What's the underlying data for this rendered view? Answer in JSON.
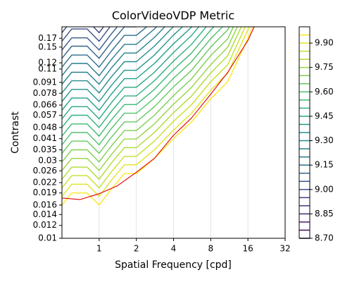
{
  "chart_data": {
    "type": "contour",
    "title": "ColorVideoVDP Metric",
    "x_label": "Spatial Frequency [cpd]",
    "y_label": "Contrast",
    "x_scale": "log",
    "y_scale": "log",
    "grid": "x",
    "xlim": [
      0.5,
      32
    ],
    "ylim": [
      0.01,
      0.2
    ],
    "xticks": [
      1,
      2,
      4,
      8,
      16,
      32
    ],
    "yticks": [
      0.01,
      0.012,
      0.014,
      0.016,
      0.019,
      0.022,
      0.026,
      0.03,
      0.035,
      0.041,
      0.048,
      0.057,
      0.066,
      0.078,
      0.091,
      0.11,
      0.12,
      0.15,
      0.17
    ],
    "x": [
      0.5,
      0.6,
      0.8,
      1,
      1.25,
      1.6,
      2,
      2.8,
      4,
      5.6,
      8,
      11,
      16,
      20
    ],
    "contours": [
      {
        "level": 9.95,
        "values": [
          0.016,
          0.019,
          0.019,
          0.016,
          0.02,
          0.025,
          0.025,
          0.031,
          0.041,
          0.052,
          0.072,
          0.092,
          0.17,
          0.26
        ]
      },
      {
        "level": 9.9,
        "values": [
          0.0181,
          0.0215,
          0.0215,
          0.0181,
          0.0226,
          0.0283,
          0.0283,
          0.035,
          0.0463,
          0.0588,
          0.0814,
          0.104,
          0.192,
          0.294
        ]
      },
      {
        "level": 9.85,
        "values": [
          0.0204,
          0.0243,
          0.0243,
          0.0204,
          0.0255,
          0.0319,
          0.0319,
          0.0396,
          0.0524,
          0.0664,
          0.0919,
          0.117,
          0.217,
          null
        ]
      },
      {
        "level": 9.8,
        "values": [
          0.0231,
          0.0274,
          0.0274,
          0.0231,
          0.0289,
          0.0361,
          0.0361,
          0.0447,
          0.0592,
          0.075,
          0.104,
          0.133,
          0.245,
          null
        ]
      },
      {
        "level": 9.75,
        "values": [
          0.0261,
          0.031,
          0.031,
          0.0261,
          0.0326,
          0.0408,
          0.0408,
          0.0505,
          0.0668,
          0.0848,
          0.117,
          0.15,
          0.277,
          null
        ]
      },
      {
        "level": 9.7,
        "values": [
          0.0295,
          0.035,
          0.035,
          0.0295,
          0.0368,
          0.046,
          0.046,
          0.0571,
          0.0755,
          0.0958,
          0.133,
          0.169,
          0.313,
          null
        ]
      },
      {
        "level": 9.65,
        "values": [
          0.0333,
          0.0396,
          0.0396,
          0.0333,
          0.0416,
          0.052,
          0.052,
          0.0645,
          0.0854,
          0.108,
          0.15,
          0.192,
          0.354,
          null
        ]
      },
      {
        "level": 9.6,
        "values": [
          0.0376,
          0.0447,
          0.0447,
          0.0376,
          0.0471,
          0.0588,
          0.0588,
          0.0729,
          0.0965,
          0.122,
          0.169,
          0.216,
          null,
          null
        ]
      },
      {
        "level": 9.55,
        "values": [
          0.0425,
          0.0505,
          0.0505,
          0.0425,
          0.0532,
          0.0665,
          0.0665,
          0.0824,
          0.109,
          0.138,
          0.191,
          0.245,
          null,
          null
        ]
      },
      {
        "level": 9.5,
        "values": [
          0.0481,
          0.0571,
          0.0571,
          0.0481,
          0.0601,
          0.0751,
          0.0751,
          0.0931,
          0.123,
          0.156,
          0.216,
          null,
          null,
          null
        ]
      },
      {
        "level": 9.45,
        "values": [
          0.0543,
          0.0645,
          0.0645,
          0.0543,
          0.0679,
          0.0849,
          0.0849,
          0.105,
          0.139,
          0.177,
          0.244,
          null,
          null,
          null
        ]
      },
      {
        "level": 9.4,
        "values": [
          0.0614,
          0.0729,
          0.0729,
          0.0614,
          0.0767,
          0.0959,
          0.0959,
          0.119,
          0.157,
          0.199,
          0.276,
          null,
          null,
          null
        ]
      },
      {
        "level": 9.35,
        "values": [
          0.0694,
          0.0824,
          0.0824,
          0.0694,
          0.0867,
          0.108,
          0.108,
          0.134,
          0.178,
          0.225,
          null,
          null,
          null,
          null
        ]
      },
      {
        "level": 9.3,
        "values": [
          0.0784,
          0.0931,
          0.0931,
          0.0784,
          0.098,
          0.122,
          0.122,
          0.152,
          0.201,
          null,
          null,
          null,
          null,
          null
        ]
      },
      {
        "level": 9.25,
        "values": [
          0.0886,
          0.105,
          0.105,
          0.0886,
          0.111,
          0.138,
          0.138,
          0.172,
          0.227,
          null,
          null,
          null,
          null,
          null
        ]
      },
      {
        "level": 9.2,
        "values": [
          0.1,
          0.119,
          0.119,
          0.1,
          0.125,
          0.156,
          0.156,
          0.194,
          0.256,
          null,
          null,
          null,
          null,
          null
        ]
      },
      {
        "level": 9.15,
        "values": [
          0.113,
          0.134,
          0.134,
          0.113,
          0.141,
          0.177,
          0.177,
          0.219,
          null,
          null,
          null,
          null,
          null,
          null
        ]
      },
      {
        "level": 9.1,
        "values": [
          0.128,
          0.152,
          0.152,
          0.128,
          0.16,
          0.2,
          0.2,
          0.248,
          null,
          null,
          null,
          null,
          null,
          null
        ]
      },
      {
        "level": 9.05,
        "values": [
          0.144,
          0.171,
          0.171,
          0.144,
          0.18,
          0.226,
          null,
          null,
          null,
          null,
          null,
          null,
          null,
          null
        ]
      },
      {
        "level": 9.0,
        "values": [
          0.163,
          0.194,
          0.194,
          0.163,
          0.204,
          0.255,
          null,
          null,
          null,
          null,
          null,
          null,
          null,
          null
        ]
      },
      {
        "level": 8.95,
        "values": [
          0.184,
          0.219,
          0.219,
          0.184,
          0.23,
          null,
          null,
          null,
          null,
          null,
          null,
          null,
          null,
          null
        ]
      }
    ],
    "line": {
      "color": "#e00000",
      "x": [
        0.5,
        0.7,
        1,
        1.4,
        2,
        2.8,
        4,
        5.6,
        8,
        11,
        16,
        18
      ],
      "values": [
        0.0177,
        0.0173,
        0.0188,
        0.021,
        0.0255,
        0.031,
        0.043,
        0.055,
        0.077,
        0.105,
        0.165,
        0.2
      ]
    },
    "colorbar": {
      "colormap": "viridis",
      "lim": [
        8.7,
        10.0
      ],
      "levels": [
        8.7,
        8.75,
        8.8,
        8.85,
        8.9,
        8.95,
        9.0,
        9.05,
        9.1,
        9.15,
        9.2,
        9.25,
        9.3,
        9.35,
        9.4,
        9.45,
        9.5,
        9.55,
        9.6,
        9.65,
        9.7,
        9.75,
        9.8,
        9.85,
        9.9,
        9.95
      ],
      "ticks": [
        {
          "value": 8.7,
          "label": "8.70"
        },
        {
          "value": 8.85,
          "label": "8.85"
        },
        {
          "value": 9.0,
          "label": "9.00"
        },
        {
          "value": 9.15,
          "label": "9.15"
        },
        {
          "value": 9.3,
          "label": "9.30"
        },
        {
          "value": 9.45,
          "label": "9.45"
        },
        {
          "value": 9.6,
          "label": "9.60"
        },
        {
          "value": 9.75,
          "label": "9.75"
        },
        {
          "value": 9.9,
          "label": "9.90"
        }
      ]
    }
  }
}
